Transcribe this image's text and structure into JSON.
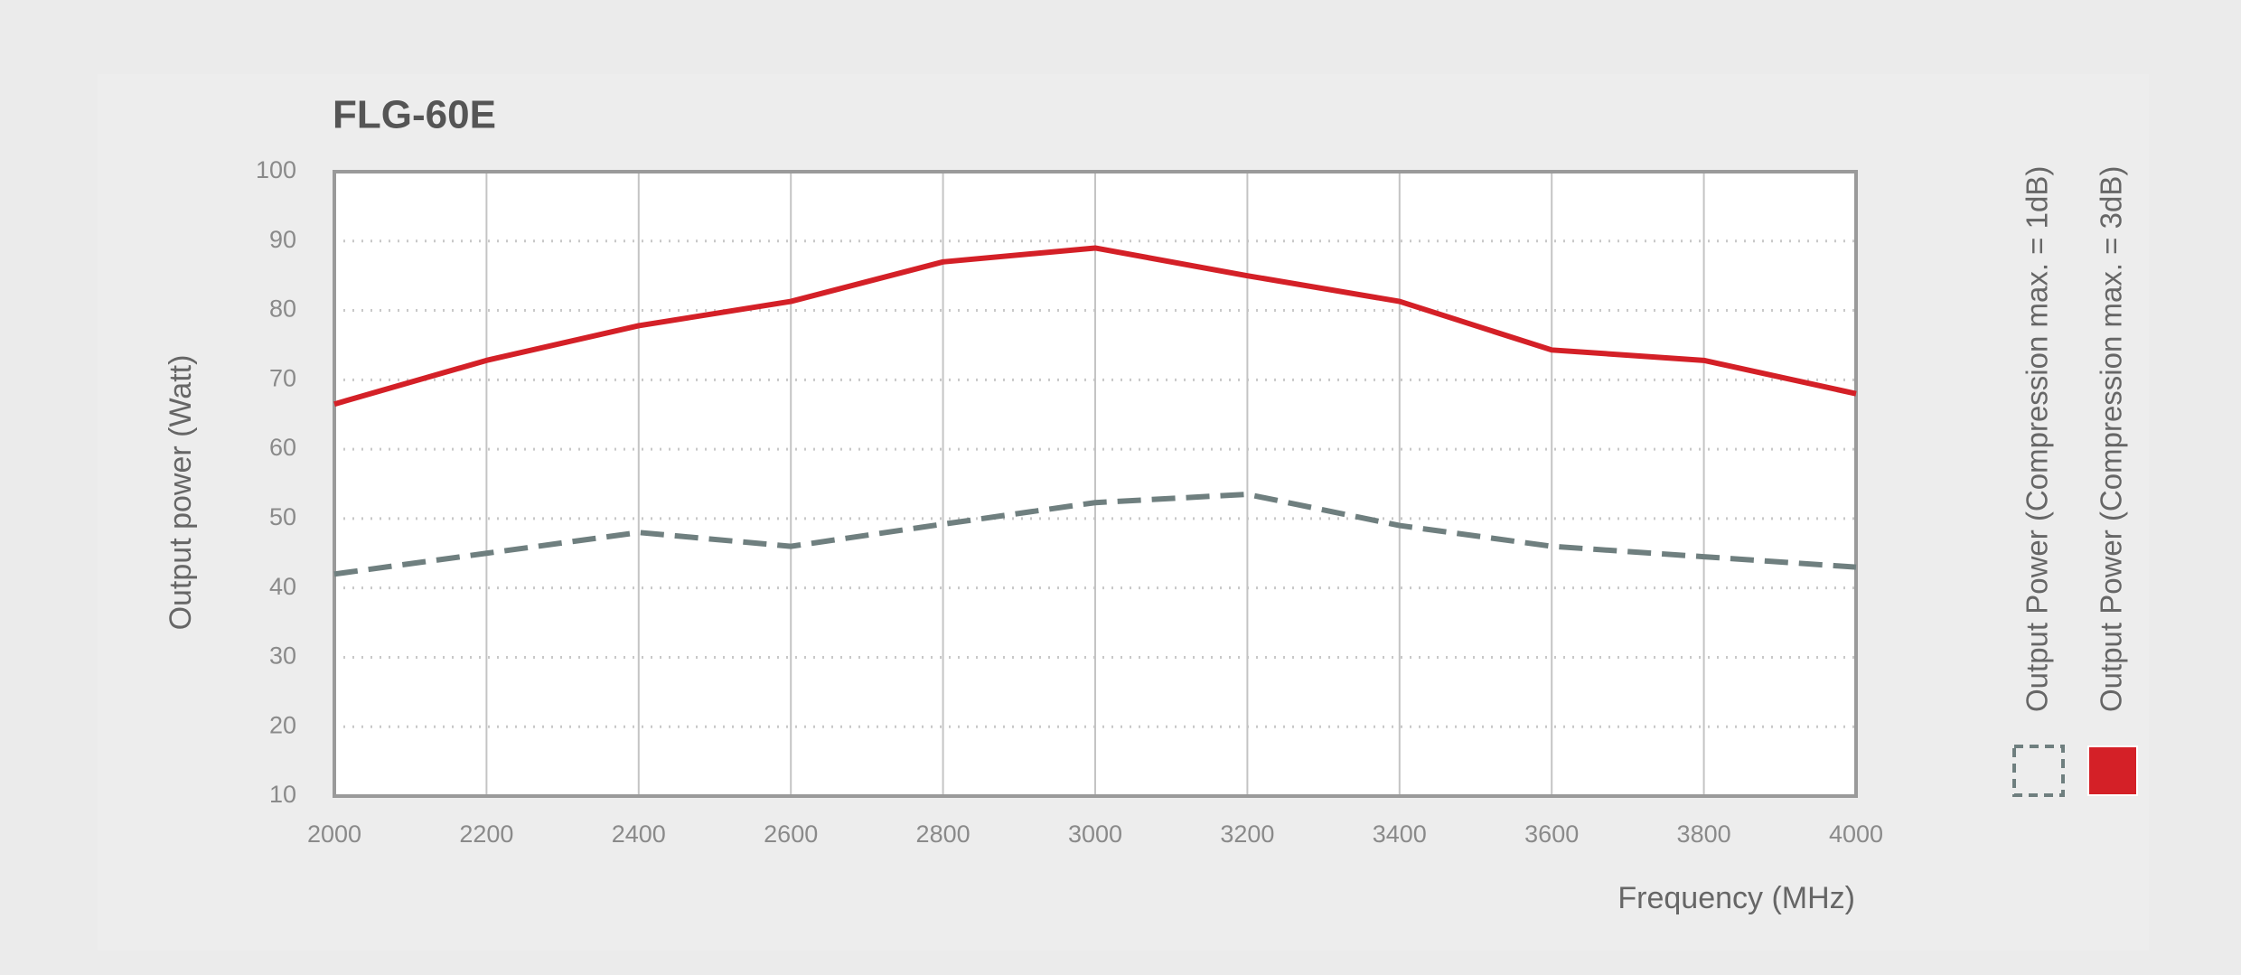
{
  "chart_data": {
    "type": "line",
    "title": "FLG-60E",
    "x_label": "Frequency (MHz)",
    "y_label": "Output power (Watt)",
    "x": [
      2000,
      2200,
      2400,
      2600,
      2800,
      3000,
      3200,
      3400,
      3600,
      3800,
      4000
    ],
    "series": [
      {
        "name": "Output Power (Compression max. = 1dB)",
        "color": "#6f7f7f",
        "style": "dashed",
        "values": [
          42,
          45,
          48,
          46,
          49.2,
          52.3,
          53.5,
          49,
          46,
          44.5,
          43
        ]
      },
      {
        "name": "Output Power (Compression max. = 3dB)",
        "color": "#d42027",
        "style": "solid",
        "values": [
          66.5,
          72.8,
          77.8,
          81.3,
          87,
          89,
          85,
          81.3,
          74.3,
          72.8,
          68
        ]
      }
    ],
    "xlim": [
      2000,
      4000
    ],
    "xticks": [
      2000,
      2200,
      2400,
      2600,
      2800,
      3000,
      3200,
      3400,
      3600,
      3800,
      4000
    ],
    "ylim": [
      10,
      100
    ],
    "yticks": [
      10,
      20,
      30,
      40,
      50,
      60,
      70,
      80,
      90,
      100
    ],
    "grid": true,
    "legend": "right"
  }
}
